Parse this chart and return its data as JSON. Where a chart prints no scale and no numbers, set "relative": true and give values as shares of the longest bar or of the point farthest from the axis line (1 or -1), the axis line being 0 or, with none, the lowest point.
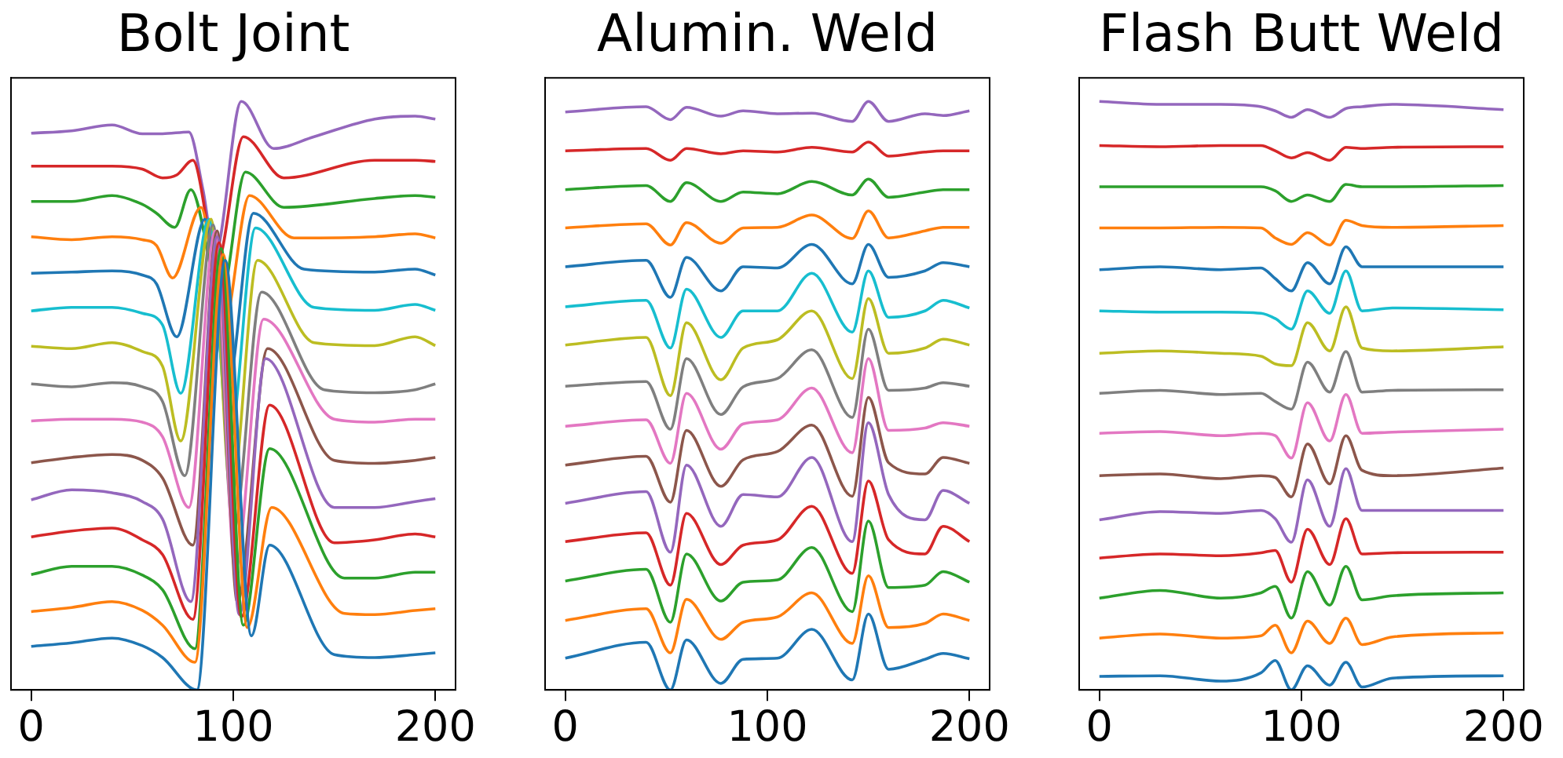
{
  "chart_data": [
    {
      "type": "line",
      "title": "Bolt Joint",
      "relative": true,
      "xlim": [
        -10,
        210
      ],
      "xticks": [
        0,
        100,
        200
      ],
      "grid": false,
      "legend": false,
      "series": [
        {
          "color": "#1f77b4",
          "x": [
            0,
            20,
            40,
            55,
            65,
            82,
            96,
            109,
            118,
            150,
            170,
            190,
            200
          ],
          "values": [
            0.074,
            0.08,
            0.088,
            0.075,
            0.055,
            0,
            0.73,
            0.092,
            0.246,
            0.06,
            0.055,
            0.06,
            0.063
          ]
        },
        {
          "color": "#ff7f0e",
          "x": [
            0,
            20,
            40,
            55,
            65,
            81,
            95,
            107,
            119,
            155,
            170,
            190,
            200
          ],
          "values": [
            0.133,
            0.14,
            0.15,
            0.135,
            0.11,
            0.047,
            0.74,
            0.106,
            0.31,
            0.13,
            0.128,
            0.135,
            0.138
          ]
        },
        {
          "color": "#2ca02c",
          "x": [
            0,
            20,
            40,
            55,
            65,
            81,
            94,
            105,
            118,
            155,
            170,
            190,
            200
          ],
          "values": [
            0.196,
            0.21,
            0.21,
            0.195,
            0.17,
            0.07,
            0.75,
            0.11,
            0.41,
            0.19,
            0.19,
            0.2,
            0.2
          ]
        },
        {
          "color": "#d62728",
          "x": [
            0,
            20,
            40,
            55,
            65,
            80,
            93,
            104,
            118,
            150,
            170,
            190,
            200
          ],
          "values": [
            0.26,
            0.27,
            0.275,
            0.255,
            0.23,
            0.12,
            0.76,
            0.124,
            0.484,
            0.25,
            0.255,
            0.265,
            0.26
          ]
        },
        {
          "color": "#9467bd",
          "x": [
            0,
            20,
            40,
            55,
            65,
            79,
            92,
            103,
            116,
            150,
            170,
            190,
            200
          ],
          "values": [
            0.323,
            0.34,
            0.335,
            0.32,
            0.29,
            0.15,
            0.77,
            0.128,
            0.563,
            0.31,
            0.31,
            0.32,
            0.325
          ]
        },
        {
          "color": "#8c564b",
          "x": [
            0,
            20,
            40,
            55,
            65,
            80,
            92,
            102,
            117,
            150,
            170,
            190,
            200
          ],
          "values": [
            0.386,
            0.395,
            0.4,
            0.39,
            0.36,
            0.246,
            0.78,
            0.15,
            0.58,
            0.39,
            0.385,
            0.39,
            0.395
          ]
        },
        {
          "color": "#e377c2",
          "x": [
            0,
            20,
            40,
            55,
            65,
            78,
            91,
            101,
            115,
            150,
            170,
            190,
            200
          ],
          "values": [
            0.457,
            0.46,
            0.46,
            0.455,
            0.43,
            0.31,
            0.78,
            0.205,
            0.63,
            0.46,
            0.455,
            0.46,
            0.46
          ]
        },
        {
          "color": "#7f7f7f",
          "x": [
            0,
            20,
            40,
            55,
            65,
            76,
            90,
            100,
            114,
            145,
            170,
            190,
            200
          ],
          "values": [
            0.52,
            0.515,
            0.522,
            0.515,
            0.49,
            0.364,
            0.79,
            0.27,
            0.676,
            0.51,
            0.505,
            0.51,
            0.52
          ]
        },
        {
          "color": "#bcbd22",
          "x": [
            0,
            20,
            40,
            55,
            65,
            74,
            89,
            99,
            112,
            140,
            170,
            190,
            200
          ],
          "values": [
            0.584,
            0.58,
            0.59,
            0.575,
            0.55,
            0.423,
            0.8,
            0.33,
            0.73,
            0.59,
            0.585,
            0.6,
            0.585
          ]
        },
        {
          "color": "#17becf",
          "x": [
            0,
            20,
            40,
            55,
            65,
            74,
            88,
            98,
            111,
            140,
            170,
            190,
            200
          ],
          "values": [
            0.644,
            0.65,
            0.65,
            0.64,
            0.62,
            0.504,
            0.8,
            0.42,
            0.785,
            0.65,
            0.645,
            0.655,
            0.645
          ]
        },
        {
          "color": "#1f77b4",
          "x": [
            0,
            20,
            40,
            55,
            62,
            72,
            86,
            97,
            110,
            135,
            170,
            190,
            200
          ],
          "values": [
            0.708,
            0.71,
            0.712,
            0.705,
            0.69,
            0.6,
            0.8,
            0.51,
            0.81,
            0.715,
            0.71,
            0.715,
            0.705
          ]
        },
        {
          "color": "#ff7f0e",
          "x": [
            0,
            20,
            40,
            55,
            62,
            70,
            84,
            95,
            108,
            130,
            170,
            190,
            200
          ],
          "values": [
            0.77,
            0.765,
            0.77,
            0.765,
            0.755,
            0.7,
            0.82,
            0.614,
            0.84,
            0.768,
            0.77,
            0.775,
            0.768
          ]
        },
        {
          "color": "#2ca02c",
          "x": [
            0,
            20,
            40,
            55,
            62,
            71,
            79,
            94,
            106,
            125,
            170,
            190,
            200
          ],
          "values": [
            0.83,
            0.83,
            0.84,
            0.825,
            0.81,
            0.786,
            0.85,
            0.667,
            0.88,
            0.82,
            0.835,
            0.84,
            0.837
          ]
        },
        {
          "color": "#d62728",
          "x": [
            0,
            20,
            40,
            55,
            65,
            72,
            80,
            92,
            105,
            125,
            170,
            190,
            200
          ],
          "values": [
            0.89,
            0.89,
            0.89,
            0.885,
            0.87,
            0.875,
            0.9,
            0.726,
            0.94,
            0.87,
            0.9,
            0.9,
            0.898
          ]
        },
        {
          "color": "#9467bd",
          "x": [
            0,
            20,
            40,
            55,
            65,
            78,
            85,
            91,
            104,
            120,
            140,
            170,
            190,
            200
          ],
          "values": [
            0.946,
            0.95,
            0.96,
            0.945,
            0.945,
            0.948,
            0.85,
            0.74,
            1,
            0.92,
            0.94,
            0.97,
            0.975,
            0.97
          ]
        }
      ]
    },
    {
      "type": "line",
      "title": "Alumin. Weld",
      "relative": true,
      "xlim": [
        -10,
        210
      ],
      "xticks": [
        0,
        100,
        200
      ],
      "grid": false,
      "legend": false,
      "x": [
        0,
        40,
        52,
        60,
        77,
        88,
        105,
        122,
        142,
        150,
        160,
        178,
        187,
        200
      ],
      "series": [
        {
          "color": "#1f77b4",
          "values": [
            0.054,
            0.081,
            0,
            0.085,
            0.011,
            0.052,
            0.054,
            0.103,
            0.017,
            0.129,
            0.035,
            0.052,
            0.062,
            0.053
          ]
        },
        {
          "color": "#ff7f0e",
          "values": [
            0.118,
            0.138,
            0.063,
            0.154,
            0.086,
            0.115,
            0.124,
            0.165,
            0.079,
            0.194,
            0.106,
            0.113,
            0.129,
            0.118
          ]
        },
        {
          "color": "#2ca02c",
          "values": [
            0.185,
            0.205,
            0.115,
            0.231,
            0.151,
            0.183,
            0.187,
            0.242,
            0.133,
            0.287,
            0.174,
            0.178,
            0.201,
            0.183
          ]
        },
        {
          "color": "#d62728",
          "values": [
            0.252,
            0.267,
            0.178,
            0.3,
            0.213,
            0.246,
            0.255,
            0.312,
            0.198,
            0.355,
            0.255,
            0.231,
            0.278,
            0.252
          ]
        },
        {
          "color": "#9467bd",
          "values": [
            0.317,
            0.337,
            0.234,
            0.382,
            0.278,
            0.332,
            0.328,
            0.395,
            0.252,
            0.454,
            0.332,
            0.289,
            0.339,
            0.317
          ]
        },
        {
          "color": "#8c564b",
          "values": [
            0.382,
            0.397,
            0.319,
            0.441,
            0.346,
            0.391,
            0.405,
            0.45,
            0.329,
            0.497,
            0.386,
            0.367,
            0.395,
            0.385
          ]
        },
        {
          "color": "#e377c2",
          "values": [
            0.448,
            0.459,
            0.385,
            0.504,
            0.409,
            0.452,
            0.459,
            0.513,
            0.403,
            0.563,
            0.441,
            0.445,
            0.454,
            0.448
          ]
        },
        {
          "color": "#7f7f7f",
          "values": [
            0.516,
            0.524,
            0.443,
            0.563,
            0.468,
            0.515,
            0.529,
            0.578,
            0.463,
            0.613,
            0.509,
            0.513,
            0.522,
            0.516
          ]
        },
        {
          "color": "#bcbd22",
          "values": [
            0.586,
            0.599,
            0.5,
            0.624,
            0.527,
            0.581,
            0.595,
            0.644,
            0.529,
            0.665,
            0.572,
            0.581,
            0.596,
            0.586
          ]
        },
        {
          "color": "#17becf",
          "values": [
            0.651,
            0.662,
            0.581,
            0.681,
            0.599,
            0.644,
            0.644,
            0.708,
            0.608,
            0.712,
            0.633,
            0.644,
            0.662,
            0.649
          ]
        },
        {
          "color": "#1f77b4",
          "values": [
            0.719,
            0.73,
            0.667,
            0.735,
            0.678,
            0.719,
            0.717,
            0.757,
            0.69,
            0.757,
            0.701,
            0.712,
            0.726,
            0.719
          ]
        },
        {
          "color": "#ff7f0e",
          "values": [
            0.785,
            0.792,
            0.756,
            0.794,
            0.759,
            0.785,
            0.786,
            0.807,
            0.767,
            0.814,
            0.768,
            0.78,
            0.786,
            0.786
          ]
        },
        {
          "color": "#2ca02c",
          "values": [
            0.85,
            0.857,
            0.83,
            0.862,
            0.83,
            0.846,
            0.843,
            0.864,
            0.841,
            0.868,
            0.837,
            0.846,
            0.85,
            0.85
          ]
        },
        {
          "color": "#d62728",
          "values": [
            0.916,
            0.92,
            0.9,
            0.92,
            0.911,
            0.916,
            0.914,
            0.922,
            0.914,
            0.931,
            0.907,
            0.914,
            0.916,
            0.916
          ]
        },
        {
          "color": "#9467bd",
          "values": [
            0.982,
            0.991,
            0.969,
            0.99,
            0.975,
            0.984,
            0.979,
            0.98,
            0.966,
            1,
            0.966,
            0.979,
            0.976,
            0.984
          ]
        }
      ]
    },
    {
      "type": "line",
      "title": "Flash Butt Weld",
      "relative": true,
      "xlim": [
        -10,
        210
      ],
      "xticks": [
        0,
        100,
        200
      ],
      "grid": false,
      "legend": false,
      "x": [
        0,
        30,
        60,
        80,
        87,
        95,
        103,
        114,
        122,
        130,
        145,
        200
      ],
      "series": [
        {
          "color": "#1f77b4",
          "values": [
            0.023,
            0.024,
            0.015,
            0.029,
            0.05,
            0,
            0.041,
            0.008,
            0.047,
            0.005,
            0.02,
            0.024
          ]
        },
        {
          "color": "#ff7f0e",
          "values": [
            0.088,
            0.095,
            0.088,
            0.092,
            0.11,
            0.063,
            0.117,
            0.079,
            0.122,
            0.077,
            0.09,
            0.097
          ]
        },
        {
          "color": "#2ca02c",
          "values": [
            0.156,
            0.169,
            0.156,
            0.165,
            0.176,
            0.122,
            0.201,
            0.144,
            0.21,
            0.153,
            0.16,
            0.165
          ]
        },
        {
          "color": "#d62728",
          "values": [
            0.224,
            0.231,
            0.228,
            0.233,
            0.237,
            0.183,
            0.273,
            0.213,
            0.291,
            0.231,
            0.233,
            0.234
          ]
        },
        {
          "color": "#9467bd",
          "values": [
            0.289,
            0.303,
            0.3,
            0.305,
            0.291,
            0.251,
            0.357,
            0.278,
            0.376,
            0.305,
            0.305,
            0.305
          ]
        },
        {
          "color": "#8c564b",
          "values": [
            0.364,
            0.367,
            0.359,
            0.364,
            0.361,
            0.328,
            0.418,
            0.35,
            0.432,
            0.373,
            0.364,
            0.377
          ]
        },
        {
          "color": "#e377c2",
          "values": [
            0.436,
            0.439,
            0.432,
            0.436,
            0.432,
            0.394,
            0.488,
            0.423,
            0.502,
            0.436,
            0.438,
            0.443
          ]
        },
        {
          "color": "#7f7f7f",
          "values": [
            0.504,
            0.509,
            0.502,
            0.504,
            0.49,
            0.477,
            0.557,
            0.506,
            0.575,
            0.506,
            0.509,
            0.51
          ]
        },
        {
          "color": "#bcbd22",
          "values": [
            0.572,
            0.576,
            0.572,
            0.567,
            0.554,
            0.551,
            0.624,
            0.576,
            0.651,
            0.581,
            0.576,
            0.583
          ]
        },
        {
          "color": "#17becf",
          "values": [
            0.644,
            0.642,
            0.642,
            0.64,
            0.631,
            0.613,
            0.678,
            0.64,
            0.712,
            0.644,
            0.649,
            0.646
          ]
        },
        {
          "color": "#1f77b4",
          "values": [
            0.714,
            0.719,
            0.714,
            0.717,
            0.699,
            0.678,
            0.726,
            0.69,
            0.753,
            0.719,
            0.719,
            0.719
          ]
        },
        {
          "color": "#ff7f0e",
          "values": [
            0.785,
            0.785,
            0.786,
            0.785,
            0.768,
            0.757,
            0.777,
            0.756,
            0.798,
            0.789,
            0.786,
            0.789
          ]
        },
        {
          "color": "#2ca02c",
          "values": [
            0.855,
            0.855,
            0.855,
            0.855,
            0.848,
            0.83,
            0.841,
            0.83,
            0.859,
            0.855,
            0.855,
            0.857
          ]
        },
        {
          "color": "#d62728",
          "values": [
            0.925,
            0.923,
            0.925,
            0.925,
            0.916,
            0.904,
            0.913,
            0.9,
            0.922,
            0.92,
            0.922,
            0.923
          ]
        },
        {
          "color": "#9467bd",
          "values": [
            1,
            0.995,
            0.995,
            0.991,
            0.984,
            0.973,
            0.986,
            0.973,
            0.988,
            0.991,
            0.995,
            0.986
          ]
        }
      ]
    }
  ]
}
